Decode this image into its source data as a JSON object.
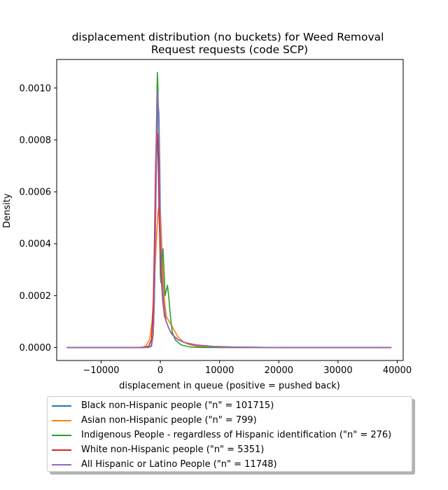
{
  "chart_data": {
    "type": "line",
    "title": "displacement distribution (no buckets)  for Weed Removal\nRequest requests (code SCP)",
    "xlabel": "displacement in queue (positive = pushed back)",
    "ylabel": "Density",
    "xlim": [
      -17500,
      41000
    ],
    "ylim": [
      -5e-05,
      0.00111
    ],
    "xticks": [
      -10000,
      0,
      10000,
      20000,
      30000,
      40000
    ],
    "xtick_labels": [
      "−10000",
      "0",
      "10000",
      "20000",
      "30000",
      "40000"
    ],
    "yticks": [
      0.0,
      0.0002,
      0.0004,
      0.0006,
      0.0008,
      0.001
    ],
    "ytick_labels": [
      "0.0000",
      "0.0002",
      "0.0004",
      "0.0006",
      "0.0008",
      "0.0010"
    ],
    "grid": false,
    "legend_position": "below-plot",
    "series": [
      {
        "name": "Black non-Hispanic people (\"n\" = 101715)",
        "color": "#1f77b4",
        "points": [
          [
            -15800,
            0
          ],
          [
            -3000,
            0
          ],
          [
            -1600,
            5e-06
          ],
          [
            -1200,
            5e-05
          ],
          [
            -1000,
            0.0002
          ],
          [
            -800,
            0.0005
          ],
          [
            -600,
            0.0008
          ],
          [
            -500,
            0.00093
          ],
          [
            -400,
            0.00095
          ],
          [
            -250,
            0.0009
          ],
          [
            -100,
            0.0007
          ],
          [
            0,
            0.0005
          ],
          [
            200,
            0.00035
          ],
          [
            400,
            0.00022
          ],
          [
            700,
            0.00014
          ],
          [
            1000,
            0.0001
          ],
          [
            1500,
            7e-05
          ],
          [
            2000,
            5e-05
          ],
          [
            3000,
            3e-05
          ],
          [
            4000,
            2e-05
          ],
          [
            6000,
            8e-06
          ],
          [
            10000,
            2e-06
          ],
          [
            20000,
            0
          ],
          [
            39000,
            0
          ]
        ]
      },
      {
        "name": "Asian non-Hispanic people (\"n\" = 799)",
        "color": "#ff7f0e",
        "points": [
          [
            -15800,
            0
          ],
          [
            -3500,
            0
          ],
          [
            -2500,
            5e-06
          ],
          [
            -1800,
            3e-05
          ],
          [
            -1400,
            0.0001
          ],
          [
            -1000,
            0.00025
          ],
          [
            -700,
            0.0004
          ],
          [
            -400,
            0.00052
          ],
          [
            -200,
            0.00055
          ],
          [
            0,
            0.00053
          ],
          [
            200,
            0.00042
          ],
          [
            400,
            0.0003
          ],
          [
            700,
            0.00018
          ],
          [
            1000,
            0.00012
          ],
          [
            1500,
            0.0001
          ],
          [
            2000,
            8e-05
          ],
          [
            2500,
            6e-05
          ],
          [
            3000,
            4e-05
          ],
          [
            4000,
            2e-05
          ],
          [
            5000,
            1e-05
          ],
          [
            6500,
            4e-06
          ],
          [
            8000,
            2e-06
          ],
          [
            10000,
            0
          ],
          [
            39000,
            0
          ]
        ]
      },
      {
        "name": "Indigenous People - regardless of Hispanic identification (\"n\" = 276)",
        "color": "#2ca02c",
        "points": [
          [
            -15800,
            0
          ],
          [
            -2000,
            0
          ],
          [
            -1500,
            5e-06
          ],
          [
            -1200,
            5e-05
          ],
          [
            -1000,
            0.0002
          ],
          [
            -800,
            0.0006
          ],
          [
            -600,
            0.00095
          ],
          [
            -500,
            0.00106
          ],
          [
            -400,
            0.001
          ],
          [
            -250,
            0.0007
          ],
          [
            -100,
            0.00045
          ],
          [
            0,
            0.00028
          ],
          [
            100,
            0.00025
          ],
          [
            300,
            0.00035
          ],
          [
            450,
            0.00038
          ],
          [
            600,
            0.0003
          ],
          [
            800,
            0.0002
          ],
          [
            1000,
            0.00022
          ],
          [
            1200,
            0.00024
          ],
          [
            1400,
            0.0002
          ],
          [
            1700,
            0.00012
          ],
          [
            2000,
            6e-05
          ],
          [
            2500,
            3e-05
          ],
          [
            3500,
            1e-05
          ],
          [
            5000,
            2e-06
          ],
          [
            7000,
            0
          ],
          [
            39000,
            0
          ]
        ]
      },
      {
        "name": "White non-Hispanic people (\"n\" = 5351)",
        "color": "#d62728",
        "points": [
          [
            -15800,
            0
          ],
          [
            -3000,
            0
          ],
          [
            -2000,
            5e-06
          ],
          [
            -1500,
            3e-05
          ],
          [
            -1200,
            0.00015
          ],
          [
            -1000,
            0.0004
          ],
          [
            -800,
            0.0007
          ],
          [
            -650,
            0.00084
          ],
          [
            -500,
            0.00082
          ],
          [
            -350,
            0.0007
          ],
          [
            -200,
            0.0005
          ],
          [
            0,
            0.00035
          ],
          [
            200,
            0.00025
          ],
          [
            400,
            0.00018
          ],
          [
            700,
            0.00012
          ],
          [
            1000,
            0.0001
          ],
          [
            1500,
            7e-05
          ],
          [
            2000,
            5e-05
          ],
          [
            3000,
            3e-05
          ],
          [
            4000,
            2e-05
          ],
          [
            6000,
            1e-05
          ],
          [
            9000,
            4e-06
          ],
          [
            14000,
            1e-06
          ],
          [
            22000,
            0
          ],
          [
            39000,
            0
          ]
        ]
      },
      {
        "name": "All Hispanic or Latino People (\"n\" = 11748)",
        "color": "#9467bd",
        "points": [
          [
            -15800,
            0
          ],
          [
            -2500,
            0
          ],
          [
            -1500,
            5e-06
          ],
          [
            -1200,
            5e-05
          ],
          [
            -1000,
            0.0002
          ],
          [
            -800,
            0.0005
          ],
          [
            -650,
            0.00085
          ],
          [
            -500,
            0.00099
          ],
          [
            -400,
            0.00096
          ],
          [
            -250,
            0.00085
          ],
          [
            -100,
            0.0006
          ],
          [
            0,
            0.00045
          ],
          [
            200,
            0.0003
          ],
          [
            400,
            0.0002
          ],
          [
            700,
            0.00013
          ],
          [
            1000,
            0.0001
          ],
          [
            1500,
            7e-05
          ],
          [
            2000,
            5e-05
          ],
          [
            3000,
            3e-05
          ],
          [
            4000,
            2e-05
          ],
          [
            6000,
            8e-06
          ],
          [
            10000,
            2e-06
          ],
          [
            20000,
            0
          ],
          [
            39000,
            0
          ]
        ]
      }
    ]
  }
}
